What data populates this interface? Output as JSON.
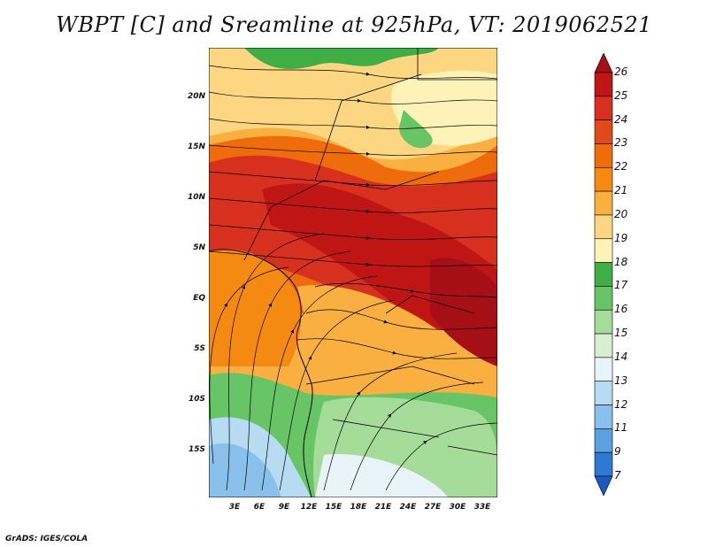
{
  "title": "WBPT [C] and Sreamline at 925hPa, VT: 2019062521",
  "credit": "GrADS: IGES/COLA",
  "lat_labels": [
    "20N",
    "15N",
    "10N",
    "5N",
    "EQ",
    "5S",
    "10S",
    "15S"
  ],
  "lon_labels": [
    "3E",
    "6E",
    "9E",
    "12E",
    "15E",
    "18E",
    "21E",
    "24E",
    "27E",
    "30E",
    "33E"
  ],
  "colorbar": {
    "labels": [
      "26",
      "25",
      "24",
      "23",
      "22",
      "21",
      "20",
      "19",
      "18",
      "17",
      "16",
      "15",
      "14",
      "13",
      "12",
      "11",
      "9",
      "7"
    ],
    "colors": [
      "#a50f15",
      "#c01515",
      "#d7301f",
      "#e04a1a",
      "#ef6c0c",
      "#f58a12",
      "#f9b041",
      "#fcd680",
      "#fdf2b8",
      "#3fae45",
      "#67c566",
      "#a6dc99",
      "#d7efcf",
      "#e9f4fa",
      "#b7dcf2",
      "#8ac1ec",
      "#5ba0e0",
      "#2f78d4",
      "#1b59c3"
    ]
  }
}
